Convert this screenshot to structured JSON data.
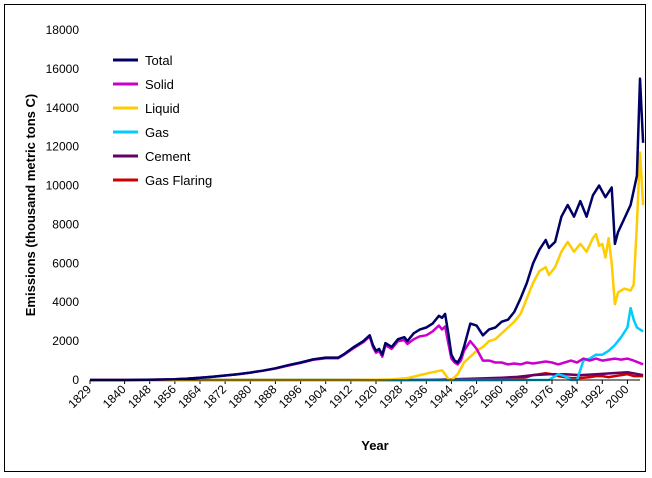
{
  "chart_data": {
    "type": "line",
    "title": "",
    "xlabel": "Year",
    "ylabel": "Emissions (thousand metric tons C)",
    "ylim": [
      0,
      18000
    ],
    "yticks": [
      0,
      2000,
      4000,
      6000,
      8000,
      10000,
      12000,
      14000,
      16000,
      18000
    ],
    "xlim": [
      1829,
      2004
    ],
    "xticks": [
      1829,
      1840,
      1848,
      1856,
      1864,
      1872,
      1880,
      1888,
      1896,
      1904,
      1912,
      1920,
      1928,
      1936,
      1944,
      1952,
      1960,
      1968,
      1976,
      1984,
      1992,
      2000
    ],
    "grid": false,
    "legend": "top-left",
    "series": [
      {
        "name": "Total",
        "color": "#000066",
        "points": [
          [
            1829,
            0
          ],
          [
            1840,
            0
          ],
          [
            1850,
            20
          ],
          [
            1856,
            40
          ],
          [
            1860,
            70
          ],
          [
            1864,
            120
          ],
          [
            1868,
            170
          ],
          [
            1872,
            230
          ],
          [
            1876,
            300
          ],
          [
            1880,
            380
          ],
          [
            1884,
            480
          ],
          [
            1888,
            600
          ],
          [
            1892,
            760
          ],
          [
            1896,
            900
          ],
          [
            1900,
            1060
          ],
          [
            1904,
            1150
          ],
          [
            1908,
            1150
          ],
          [
            1910,
            1350
          ],
          [
            1913,
            1700
          ],
          [
            1916,
            2000
          ],
          [
            1918,
            2300
          ],
          [
            1919,
            1800
          ],
          [
            1920,
            1500
          ],
          [
            1921,
            1600
          ],
          [
            1922,
            1300
          ],
          [
            1923,
            1900
          ],
          [
            1925,
            1700
          ],
          [
            1927,
            2100
          ],
          [
            1929,
            2200
          ],
          [
            1930,
            2000
          ],
          [
            1932,
            2400
          ],
          [
            1934,
            2600
          ],
          [
            1936,
            2700
          ],
          [
            1938,
            2900
          ],
          [
            1940,
            3300
          ],
          [
            1941,
            3200
          ],
          [
            1942,
            3400
          ],
          [
            1943,
            2400
          ],
          [
            1944,
            1300
          ],
          [
            1945,
            1000
          ],
          [
            1946,
            900
          ],
          [
            1947,
            1200
          ],
          [
            1948,
            1700
          ],
          [
            1950,
            2900
          ],
          [
            1952,
            2800
          ],
          [
            1954,
            2300
          ],
          [
            1956,
            2600
          ],
          [
            1958,
            2700
          ],
          [
            1960,
            3000
          ],
          [
            1962,
            3100
          ],
          [
            1964,
            3500
          ],
          [
            1966,
            4200
          ],
          [
            1968,
            5000
          ],
          [
            1970,
            6000
          ],
          [
            1972,
            6700
          ],
          [
            1974,
            7200
          ],
          [
            1975,
            6800
          ],
          [
            1977,
            7100
          ],
          [
            1979,
            8400
          ],
          [
            1981,
            9000
          ],
          [
            1983,
            8400
          ],
          [
            1985,
            9200
          ],
          [
            1987,
            8400
          ],
          [
            1989,
            9500
          ],
          [
            1991,
            10000
          ],
          [
            1993,
            9400
          ],
          [
            1995,
            9900
          ],
          [
            1996,
            7000
          ],
          [
            1997,
            7600
          ],
          [
            1999,
            8300
          ],
          [
            2001,
            9000
          ],
          [
            2003,
            10500
          ],
          [
            2004,
            15500
          ],
          [
            2005,
            12200
          ]
        ]
      },
      {
        "name": "Solid",
        "color": "#CC00CC",
        "points": [
          [
            1829,
            0
          ],
          [
            1840,
            0
          ],
          [
            1850,
            20
          ],
          [
            1856,
            40
          ],
          [
            1860,
            70
          ],
          [
            1864,
            120
          ],
          [
            1868,
            170
          ],
          [
            1872,
            230
          ],
          [
            1876,
            300
          ],
          [
            1880,
            380
          ],
          [
            1884,
            480
          ],
          [
            1888,
            590
          ],
          [
            1892,
            740
          ],
          [
            1896,
            880
          ],
          [
            1900,
            1040
          ],
          [
            1904,
            1120
          ],
          [
            1908,
            1120
          ],
          [
            1910,
            1320
          ],
          [
            1913,
            1650
          ],
          [
            1916,
            1950
          ],
          [
            1918,
            2250
          ],
          [
            1919,
            1700
          ],
          [
            1920,
            1400
          ],
          [
            1921,
            1500
          ],
          [
            1922,
            1200
          ],
          [
            1923,
            1800
          ],
          [
            1925,
            1600
          ],
          [
            1927,
            2000
          ],
          [
            1929,
            2050
          ],
          [
            1930,
            1850
          ],
          [
            1932,
            2100
          ],
          [
            1934,
            2250
          ],
          [
            1936,
            2300
          ],
          [
            1938,
            2500
          ],
          [
            1940,
            2800
          ],
          [
            1941,
            2600
          ],
          [
            1942,
            2750
          ],
          [
            1943,
            1900
          ],
          [
            1944,
            1100
          ],
          [
            1945,
            900
          ],
          [
            1946,
            800
          ],
          [
            1947,
            1000
          ],
          [
            1948,
            1500
          ],
          [
            1950,
            2000
          ],
          [
            1952,
            1600
          ],
          [
            1954,
            1000
          ],
          [
            1956,
            1000
          ],
          [
            1958,
            900
          ],
          [
            1960,
            900
          ],
          [
            1962,
            800
          ],
          [
            1964,
            850
          ],
          [
            1966,
            800
          ],
          [
            1968,
            900
          ],
          [
            1970,
            850
          ],
          [
            1972,
            900
          ],
          [
            1974,
            950
          ],
          [
            1976,
            900
          ],
          [
            1978,
            800
          ],
          [
            1980,
            900
          ],
          [
            1982,
            1000
          ],
          [
            1984,
            900
          ],
          [
            1986,
            1100
          ],
          [
            1988,
            1000
          ],
          [
            1990,
            1100
          ],
          [
            1992,
            1000
          ],
          [
            1994,
            1050
          ],
          [
            1996,
            1100
          ],
          [
            1998,
            1050
          ],
          [
            2000,
            1100
          ],
          [
            2002,
            1000
          ],
          [
            2005,
            800
          ]
        ]
      },
      {
        "name": "Liquid",
        "color": "#FFCC00",
        "points": [
          [
            1829,
            0
          ],
          [
            1900,
            0
          ],
          [
            1910,
            0
          ],
          [
            1920,
            10
          ],
          [
            1925,
            30
          ],
          [
            1930,
            100
          ],
          [
            1934,
            250
          ],
          [
            1938,
            400
          ],
          [
            1941,
            500
          ],
          [
            1942,
            300
          ],
          [
            1943,
            50
          ],
          [
            1944,
            0
          ],
          [
            1946,
            300
          ],
          [
            1948,
            900
          ],
          [
            1950,
            1200
          ],
          [
            1952,
            1500
          ],
          [
            1954,
            1700
          ],
          [
            1956,
            2000
          ],
          [
            1958,
            2100
          ],
          [
            1960,
            2400
          ],
          [
            1962,
            2700
          ],
          [
            1964,
            3000
          ],
          [
            1966,
            3400
          ],
          [
            1968,
            4200
          ],
          [
            1970,
            5000
          ],
          [
            1972,
            5600
          ],
          [
            1974,
            5800
          ],
          [
            1975,
            5400
          ],
          [
            1977,
            5800
          ],
          [
            1979,
            6600
          ],
          [
            1981,
            7100
          ],
          [
            1983,
            6600
          ],
          [
            1985,
            7000
          ],
          [
            1987,
            6600
          ],
          [
            1989,
            7300
          ],
          [
            1990,
            7500
          ],
          [
            1991,
            6900
          ],
          [
            1992,
            7000
          ],
          [
            1993,
            6300
          ],
          [
            1994,
            7300
          ],
          [
            1995,
            6000
          ],
          [
            1996,
            3900
          ],
          [
            1997,
            4500
          ],
          [
            1999,
            4700
          ],
          [
            2001,
            4600
          ],
          [
            2002,
            4900
          ],
          [
            2003,
            8000
          ],
          [
            2004,
            11700
          ],
          [
            2005,
            9000
          ]
        ]
      },
      {
        "name": "Gas",
        "color": "#00CCFF",
        "points": [
          [
            1829,
            0
          ],
          [
            1975,
            0
          ],
          [
            1978,
            300
          ],
          [
            1980,
            200
          ],
          [
            1982,
            0
          ],
          [
            1984,
            0
          ],
          [
            1986,
            1000
          ],
          [
            1988,
            1100
          ],
          [
            1990,
            1300
          ],
          [
            1992,
            1300
          ],
          [
            1994,
            1500
          ],
          [
            1996,
            1800
          ],
          [
            1998,
            2200
          ],
          [
            2000,
            2700
          ],
          [
            2001,
            3700
          ],
          [
            2002,
            3100
          ],
          [
            2003,
            2700
          ],
          [
            2005,
            2500
          ]
        ]
      },
      {
        "name": "Cement",
        "color": "#660066",
        "points": [
          [
            1829,
            0
          ],
          [
            1930,
            0
          ],
          [
            1940,
            20
          ],
          [
            1950,
            60
          ],
          [
            1960,
            120
          ],
          [
            1965,
            160
          ],
          [
            1970,
            250
          ],
          [
            1975,
            300
          ],
          [
            1980,
            300
          ],
          [
            1985,
            250
          ],
          [
            1990,
            300
          ],
          [
            1995,
            350
          ],
          [
            2000,
            400
          ],
          [
            2005,
            250
          ]
        ]
      },
      {
        "name": "Gas Flaring",
        "color": "#CC0000",
        "points": [
          [
            1829,
            0
          ],
          [
            1960,
            0
          ],
          [
            1965,
            50
          ],
          [
            1968,
            150
          ],
          [
            1970,
            250
          ],
          [
            1972,
            300
          ],
          [
            1974,
            350
          ],
          [
            1976,
            300
          ],
          [
            1978,
            200
          ],
          [
            1980,
            150
          ],
          [
            1982,
            100
          ],
          [
            1984,
            100
          ],
          [
            1986,
            120
          ],
          [
            1988,
            150
          ],
          [
            1990,
            200
          ],
          [
            1992,
            200
          ],
          [
            1994,
            150
          ],
          [
            1996,
            200
          ],
          [
            1998,
            250
          ],
          [
            2000,
            300
          ],
          [
            2002,
            200
          ],
          [
            2005,
            200
          ]
        ]
      }
    ]
  }
}
